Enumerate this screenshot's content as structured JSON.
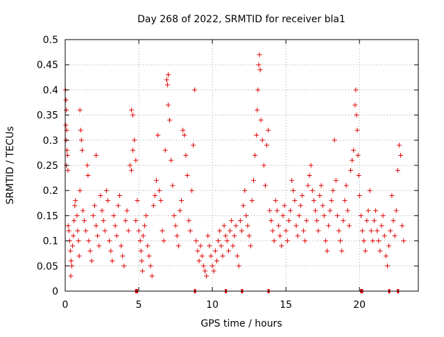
{
  "chart_data": {
    "type": "scatter",
    "title": "Day 268 of 2022, SRMTID for receiver bla1",
    "xlabel": "GPS time / hours",
    "ylabel": "SRMTID / TECUs",
    "xlim": [
      0,
      24
    ],
    "ylim": [
      0,
      0.5
    ],
    "x_ticks": [
      0,
      5,
      10,
      15,
      20
    ],
    "x_tick_labels": [
      "0",
      "5",
      "10",
      "15",
      "20"
    ],
    "y_ticks": [
      0,
      0.05,
      0.1,
      0.15,
      0.2,
      0.25,
      0.3,
      0.35,
      0.4,
      0.45,
      0.5
    ],
    "y_tick_labels": [
      "0",
      "0.05",
      "0.1",
      "0.15",
      "0.2",
      "0.25",
      "0.3",
      "0.35",
      "0.4",
      "0.45",
      "0.5"
    ],
    "grid": true,
    "marker": "+",
    "series_color": "#e00000",
    "series": [
      {
        "name": "SRMTID",
        "points": [
          [
            0.02,
            0.4
          ],
          [
            0.05,
            0.38
          ],
          [
            0.08,
            0.36
          ],
          [
            0.04,
            0.33
          ],
          [
            0.1,
            0.32
          ],
          [
            0.06,
            0.3
          ],
          [
            0.12,
            0.28
          ],
          [
            0.15,
            0.27
          ],
          [
            0.08,
            0.25
          ],
          [
            0.18,
            0.24
          ],
          [
            0.2,
            0.13
          ],
          [
            0.25,
            0.12
          ],
          [
            0.3,
            0.1
          ],
          [
            0.35,
            0.08
          ],
          [
            0.4,
            0.06
          ],
          [
            0.45,
            0.05
          ],
          [
            0.38,
            0.03
          ],
          [
            0.5,
            0.09
          ],
          [
            0.55,
            0.11
          ],
          [
            0.6,
            0.14
          ],
          [
            0.65,
            0.17
          ],
          [
            0.7,
            0.18
          ],
          [
            0.8,
            0.15
          ],
          [
            0.85,
            0.12
          ],
          [
            0.9,
            0.1
          ],
          [
            0.95,
            0.07
          ],
          [
            1.0,
            0.2
          ],
          [
            1.0,
            0.36
          ],
          [
            1.05,
            0.32
          ],
          [
            1.1,
            0.3
          ],
          [
            1.15,
            0.28
          ],
          [
            1.2,
            0.16
          ],
          [
            1.3,
            0.14
          ],
          [
            1.4,
            0.12
          ],
          [
            1.5,
            0.25
          ],
          [
            1.55,
            0.23
          ],
          [
            1.6,
            0.1
          ],
          [
            1.7,
            0.08
          ],
          [
            1.8,
            0.06
          ],
          [
            1.9,
            0.15
          ],
          [
            2.0,
            0.17
          ],
          [
            2.1,
            0.13
          ],
          [
            2.2,
            0.11
          ],
          [
            2.3,
            0.09
          ],
          [
            2.1,
            0.27
          ],
          [
            2.4,
            0.19
          ],
          [
            2.5,
            0.16
          ],
          [
            2.6,
            0.14
          ],
          [
            2.7,
            0.12
          ],
          [
            2.8,
            0.2
          ],
          [
            2.9,
            0.18
          ],
          [
            3.0,
            0.1
          ],
          [
            3.1,
            0.08
          ],
          [
            3.2,
            0.06
          ],
          [
            3.3,
            0.15
          ],
          [
            3.4,
            0.13
          ],
          [
            3.5,
            0.11
          ],
          [
            3.6,
            0.17
          ],
          [
            3.7,
            0.19
          ],
          [
            3.8,
            0.09
          ],
          [
            3.9,
            0.07
          ],
          [
            4.0,
            0.05
          ],
          [
            4.1,
            0.14
          ],
          [
            4.2,
            0.16
          ],
          [
            4.3,
            0.12
          ],
          [
            4.4,
            0.25
          ],
          [
            4.5,
            0.24
          ],
          [
            4.6,
            0.28
          ],
          [
            4.5,
            0.36
          ],
          [
            4.6,
            0.35
          ],
          [
            4.7,
            0.3
          ],
          [
            4.8,
            0.26
          ],
          [
            4.9,
            0.18
          ],
          [
            4.8,
            0.14
          ],
          [
            5.0,
            0.12
          ],
          [
            5.1,
            0.1
          ],
          [
            5.15,
            0.08
          ],
          [
            5.2,
            0.06
          ],
          [
            5.25,
            0.04
          ],
          [
            5.3,
            0.11
          ],
          [
            5.4,
            0.13
          ],
          [
            5.5,
            0.15
          ],
          [
            5.6,
            0.09
          ],
          [
            5.7,
            0.07
          ],
          [
            5.8,
            0.05
          ],
          [
            5.9,
            0.03
          ],
          [
            6.0,
            0.17
          ],
          [
            6.1,
            0.19
          ],
          [
            6.2,
            0.22
          ],
          [
            6.3,
            0.31
          ],
          [
            6.4,
            0.2
          ],
          [
            6.5,
            0.18
          ],
          [
            6.6,
            0.12
          ],
          [
            6.7,
            0.1
          ],
          [
            6.8,
            0.28
          ],
          [
            6.9,
            0.42
          ],
          [
            7.0,
            0.43
          ],
          [
            6.95,
            0.41
          ],
          [
            7.0,
            0.37
          ],
          [
            7.1,
            0.34
          ],
          [
            7.2,
            0.26
          ],
          [
            7.3,
            0.21
          ],
          [
            7.4,
            0.15
          ],
          [
            7.5,
            0.13
          ],
          [
            7.6,
            0.11
          ],
          [
            7.7,
            0.09
          ],
          [
            7.8,
            0.16
          ],
          [
            7.9,
            0.18
          ],
          [
            8.0,
            0.32
          ],
          [
            8.1,
            0.31
          ],
          [
            8.2,
            0.27
          ],
          [
            8.3,
            0.23
          ],
          [
            8.4,
            0.14
          ],
          [
            8.5,
            0.12
          ],
          [
            8.6,
            0.2
          ],
          [
            8.7,
            0.29
          ],
          [
            8.8,
            0.4
          ],
          [
            8.9,
            0.1
          ],
          [
            9.0,
            0.08
          ],
          [
            9.1,
            0.06
          ],
          [
            9.2,
            0.09
          ],
          [
            9.3,
            0.07
          ],
          [
            9.4,
            0.05
          ],
          [
            9.5,
            0.04
          ],
          [
            9.6,
            0.03
          ],
          [
            9.7,
            0.11
          ],
          [
            9.8,
            0.09
          ],
          [
            9.9,
            0.07
          ],
          [
            10.0,
            0.05
          ],
          [
            10.1,
            0.04
          ],
          [
            10.2,
            0.08
          ],
          [
            10.3,
            0.06
          ],
          [
            10.4,
            0.1
          ],
          [
            10.5,
            0.12
          ],
          [
            10.6,
            0.09
          ],
          [
            10.7,
            0.07
          ],
          [
            10.8,
            0.13
          ],
          [
            10.9,
            0.11
          ],
          [
            11.0,
            0.1
          ],
          [
            11.1,
            0.08
          ],
          [
            11.2,
            0.12
          ],
          [
            11.3,
            0.14
          ],
          [
            11.4,
            0.09
          ],
          [
            11.5,
            0.11
          ],
          [
            11.6,
            0.13
          ],
          [
            11.7,
            0.07
          ],
          [
            11.8,
            0.05
          ],
          [
            11.9,
            0.14
          ],
          [
            12.0,
            0.12
          ],
          [
            12.1,
            0.17
          ],
          [
            12.2,
            0.2
          ],
          [
            12.3,
            0.15
          ],
          [
            12.4,
            0.13
          ],
          [
            12.5,
            0.11
          ],
          [
            12.6,
            0.09
          ],
          [
            12.7,
            0.18
          ],
          [
            12.8,
            0.22
          ],
          [
            12.9,
            0.27
          ],
          [
            13.0,
            0.31
          ],
          [
            13.05,
            0.36
          ],
          [
            13.1,
            0.4
          ],
          [
            13.15,
            0.45
          ],
          [
            13.2,
            0.47
          ],
          [
            13.25,
            0.44
          ],
          [
            13.3,
            0.34
          ],
          [
            13.4,
            0.3
          ],
          [
            13.5,
            0.25
          ],
          [
            13.6,
            0.21
          ],
          [
            13.7,
            0.29
          ],
          [
            13.8,
            0.32
          ],
          [
            13.9,
            0.16
          ],
          [
            14.0,
            0.14
          ],
          [
            14.1,
            0.12
          ],
          [
            14.2,
            0.1
          ],
          [
            14.3,
            0.18
          ],
          [
            14.4,
            0.16
          ],
          [
            14.5,
            0.13
          ],
          [
            14.6,
            0.11
          ],
          [
            14.7,
            0.09
          ],
          [
            14.8,
            0.15
          ],
          [
            14.9,
            0.17
          ],
          [
            15.0,
            0.12
          ],
          [
            15.1,
            0.1
          ],
          [
            15.2,
            0.14
          ],
          [
            15.3,
            0.16
          ],
          [
            15.4,
            0.22
          ],
          [
            15.5,
            0.2
          ],
          [
            15.6,
            0.18
          ],
          [
            15.7,
            0.13
          ],
          [
            15.8,
            0.11
          ],
          [
            15.9,
            0.15
          ],
          [
            16.0,
            0.17
          ],
          [
            16.1,
            0.19
          ],
          [
            16.2,
            0.12
          ],
          [
            16.3,
            0.1
          ],
          [
            16.4,
            0.14
          ],
          [
            16.5,
            0.21
          ],
          [
            16.6,
            0.23
          ],
          [
            16.7,
            0.25
          ],
          [
            16.8,
            0.2
          ],
          [
            16.9,
            0.18
          ],
          [
            17.0,
            0.16
          ],
          [
            17.1,
            0.14
          ],
          [
            17.2,
            0.12
          ],
          [
            17.3,
            0.19
          ],
          [
            17.4,
            0.21
          ],
          [
            17.5,
            0.17
          ],
          [
            17.6,
            0.15
          ],
          [
            17.7,
            0.1
          ],
          [
            17.8,
            0.08
          ],
          [
            17.9,
            0.13
          ],
          [
            18.0,
            0.16
          ],
          [
            18.1,
            0.18
          ],
          [
            18.2,
            0.2
          ],
          [
            18.3,
            0.3
          ],
          [
            18.4,
            0.22
          ],
          [
            18.5,
            0.15
          ],
          [
            18.6,
            0.12
          ],
          [
            18.7,
            0.1
          ],
          [
            18.8,
            0.08
          ],
          [
            18.9,
            0.14
          ],
          [
            19.0,
            0.18
          ],
          [
            19.1,
            0.21
          ],
          [
            19.2,
            0.16
          ],
          [
            19.3,
            0.13
          ],
          [
            19.4,
            0.24
          ],
          [
            19.5,
            0.26
          ],
          [
            19.6,
            0.28
          ],
          [
            19.7,
            0.37
          ],
          [
            19.75,
            0.4
          ],
          [
            19.8,
            0.35
          ],
          [
            19.85,
            0.32
          ],
          [
            19.9,
            0.27
          ],
          [
            19.95,
            0.23
          ],
          [
            20.0,
            0.19
          ],
          [
            20.1,
            0.15
          ],
          [
            20.2,
            0.12
          ],
          [
            20.3,
            0.1
          ],
          [
            20.4,
            0.08
          ],
          [
            20.5,
            0.14
          ],
          [
            20.6,
            0.16
          ],
          [
            20.7,
            0.2
          ],
          [
            20.8,
            0.12
          ],
          [
            20.9,
            0.1
          ],
          [
            21.0,
            0.14
          ],
          [
            21.1,
            0.16
          ],
          [
            21.2,
            0.12
          ],
          [
            21.3,
            0.1
          ],
          [
            21.4,
            0.08
          ],
          [
            21.5,
            0.13
          ],
          [
            21.6,
            0.15
          ],
          [
            21.7,
            0.11
          ],
          [
            21.8,
            0.07
          ],
          [
            21.9,
            0.05
          ],
          [
            22.0,
            0.09
          ],
          [
            22.1,
            0.12
          ],
          [
            22.2,
            0.19
          ],
          [
            22.3,
            0.14
          ],
          [
            22.4,
            0.11
          ],
          [
            22.5,
            0.16
          ],
          [
            22.6,
            0.24
          ],
          [
            22.7,
            0.29
          ],
          [
            22.8,
            0.27
          ],
          [
            22.9,
            0.13
          ],
          [
            23.0,
            0.1
          ]
        ]
      }
    ],
    "data_gaps_x": [
      [
        4.75,
        4.95
      ],
      [
        8.75,
        8.85
      ],
      [
        10.85,
        10.95
      ],
      [
        11.95,
        12.05
      ],
      [
        13.75,
        13.85
      ],
      [
        20.05,
        20.25
      ],
      [
        21.95,
        22.05
      ],
      [
        22.55,
        22.65
      ]
    ]
  }
}
